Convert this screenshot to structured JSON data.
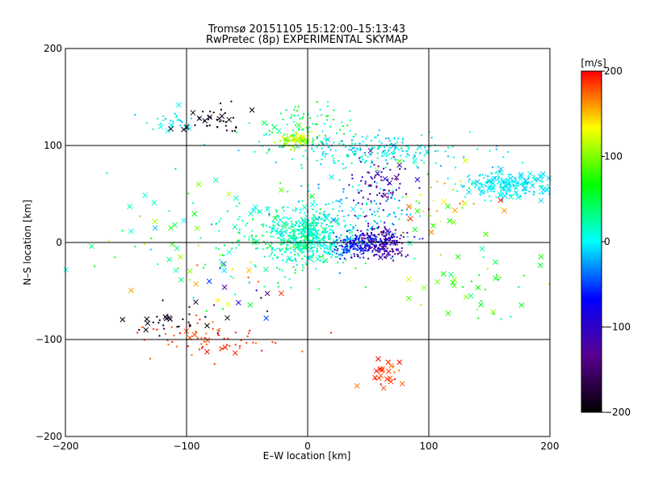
{
  "chart_data": {
    "type": "scatter",
    "title": "Tromsø 20151105 15:12:00–15:13:43",
    "subtitle": "RwPretec (8p) EXPERIMENTAL SKYMAP",
    "xlabel": "E–W location [km]",
    "ylabel": "N–S location [km]",
    "xlim": [
      -200,
      200
    ],
    "ylim": [
      -200,
      200
    ],
    "xticks": [
      -200,
      -100,
      0,
      100,
      200
    ],
    "yticks": [
      -200,
      -100,
      0,
      100,
      200
    ],
    "grid_lines": {
      "x": [
        -100,
        0,
        100
      ],
      "y": [
        -100,
        0,
        100
      ]
    },
    "colorbar": {
      "label": "[m/s]",
      "range": [
        -200,
        200
      ],
      "ticks": [
        200,
        100,
        0,
        -100,
        -200
      ],
      "colormap": [
        "#000000",
        "#5a0090",
        "#0000ff",
        "#00ffff",
        "#00ff00",
        "#ffff00",
        "#ff0000"
      ]
    },
    "markers": [
      "dot",
      "cross"
    ],
    "clusters": [
      {
        "cx": 0,
        "cy": 5,
        "sx": 15,
        "sy": 12,
        "n": 450,
        "v": [
          -10,
          40
        ],
        "cross": 0.05
      },
      {
        "cx": -25,
        "cy": 5,
        "sx": 22,
        "sy": 20,
        "n": 180,
        "v": [
          0,
          60
        ],
        "cross": 0.1
      },
      {
        "cx": 60,
        "cy": 0,
        "sx": 12,
        "sy": 8,
        "n": 260,
        "v": [
          -150,
          -80
        ],
        "cross": 0.03
      },
      {
        "cx": 38,
        "cy": -4,
        "sx": 10,
        "sy": 6,
        "n": 120,
        "v": [
          -80,
          -30
        ],
        "cross": 0.03
      },
      {
        "cx": 40,
        "cy": 30,
        "sx": 25,
        "sy": 18,
        "n": 140,
        "v": [
          -40,
          30
        ],
        "cross": 0.05
      },
      {
        "cx": 60,
        "cy": 60,
        "sx": 15,
        "sy": 15,
        "n": 80,
        "v": [
          -150,
          -80
        ],
        "cross": 0.05
      },
      {
        "cx": 50,
        "cy": 95,
        "sx": 40,
        "sy": 8,
        "n": 240,
        "v": [
          -30,
          30
        ],
        "cross": 0.05
      },
      {
        "cx": -10,
        "cy": 105,
        "sx": 8,
        "sy": 4,
        "n": 90,
        "v": [
          80,
          140
        ],
        "cross": 0.1
      },
      {
        "cx": 0,
        "cy": 120,
        "sx": 20,
        "sy": 12,
        "n": 80,
        "v": [
          0,
          80
        ],
        "cross": 0.05
      },
      {
        "cx": 165,
        "cy": 60,
        "sx": 20,
        "sy": 7,
        "n": 220,
        "v": [
          -20,
          20
        ],
        "cross": 0.25
      },
      {
        "cx": -110,
        "cy": 125,
        "sx": 10,
        "sy": 6,
        "n": 30,
        "v": [
          -20,
          20
        ],
        "cross": 0.3
      },
      {
        "cx": -75,
        "cy": 125,
        "sx": 12,
        "sy": 8,
        "n": 40,
        "v": [
          -200,
          -180
        ],
        "cross": 0.3
      },
      {
        "cx": -80,
        "cy": -100,
        "sx": 30,
        "sy": 10,
        "n": 70,
        "v": [
          170,
          200
        ],
        "cross": 0.1
      },
      {
        "cx": -110,
        "cy": -80,
        "sx": 20,
        "sy": 8,
        "n": 30,
        "v": [
          -200,
          -180
        ],
        "cross": 0.4
      },
      {
        "cx": 60,
        "cy": -135,
        "sx": 8,
        "sy": 8,
        "n": 25,
        "v": [
          170,
          200
        ],
        "cross": 0.6
      },
      {
        "cx": 130,
        "cy": -40,
        "sx": 35,
        "sy": 20,
        "n": 45,
        "v": [
          20,
          120
        ],
        "cross": 0.5
      },
      {
        "cx": 110,
        "cy": 40,
        "sx": 25,
        "sy": 20,
        "n": 45,
        "v": [
          60,
          200
        ],
        "cross": 0.4
      },
      {
        "cx": -120,
        "cy": 20,
        "sx": 40,
        "sy": 30,
        "n": 50,
        "v": [
          -30,
          120
        ],
        "cross": 0.4
      },
      {
        "cx": -60,
        "cy": -40,
        "sx": 25,
        "sy": 20,
        "n": 35,
        "v": [
          -200,
          200
        ],
        "cross": 0.5
      }
    ]
  }
}
